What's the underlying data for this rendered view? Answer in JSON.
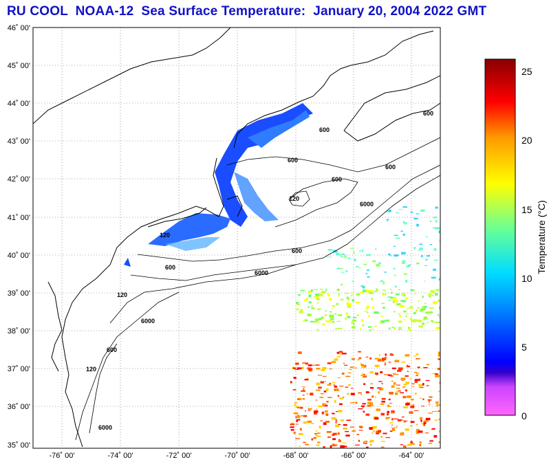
{
  "title": "RU COOL  NOAA-12  Sea Surface Temperature:  January 20, 2004 2022 GMT",
  "lat_labels": [
    "46˚ 00'",
    "45˚ 00'",
    "44˚ 00'",
    "43˚ 00'",
    "42˚ 00'",
    "41˚ 00'",
    "40˚ 00'",
    "39˚ 00'",
    "38˚ 00'",
    "37˚ 00'",
    "36˚ 00'",
    "35˚ 00'"
  ],
  "lon_labels": [
    "-76˚ 00'",
    "-74˚ 00'",
    "-72˚ 00'",
    "-70˚ 00'",
    "-68˚ 00'",
    "-66˚ 00'",
    "-64˚ 00'"
  ],
  "contour_labels": [
    "600",
    "600",
    "600",
    "600",
    "600",
    "600",
    "600",
    "600",
    "6000",
    "6000",
    "6000",
    "6000",
    "120",
    "120",
    "120",
    "120"
  ],
  "colorbar": {
    "title": "Temperature (°C)",
    "ticks": [
      "25",
      "20",
      "15",
      "10",
      "5",
      "0"
    ],
    "min": 0,
    "max": 26,
    "colors": [
      "#ff66ff",
      "#6600ff",
      "#0000ff",
      "#00ccff",
      "#66ff99",
      "#ffff00",
      "#ff9900",
      "#ff0000",
      "#880000"
    ]
  },
  "map": {
    "lon_range": [
      -77,
      -63
    ],
    "lat_range": [
      35,
      46
    ],
    "land_color": "#ffffff",
    "coast_color": "#000000",
    "grid": "dotted"
  }
}
